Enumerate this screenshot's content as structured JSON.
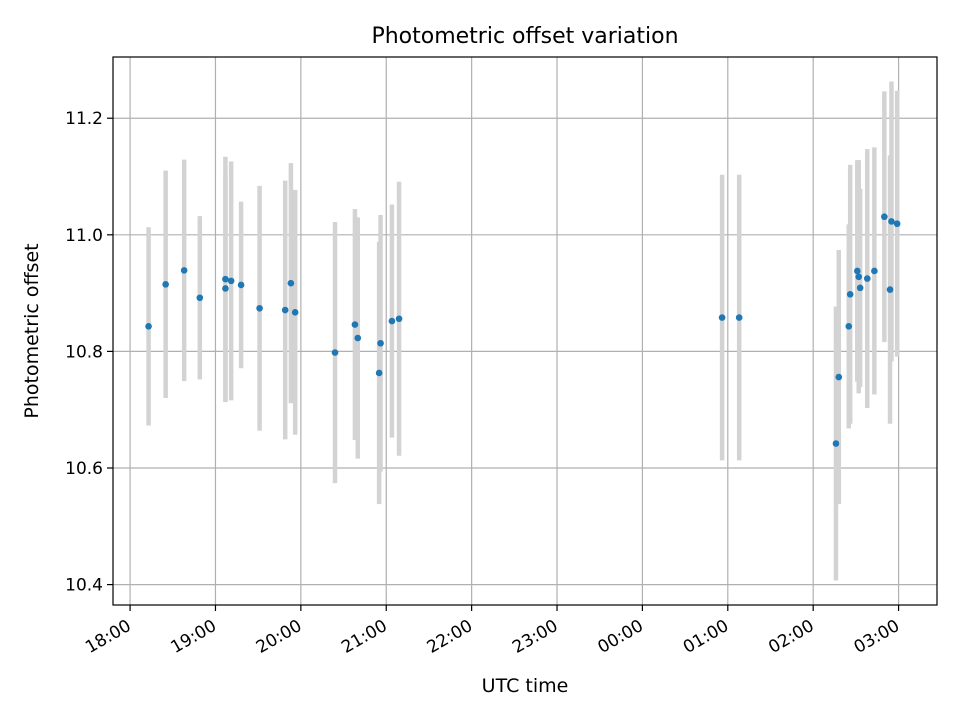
{
  "chart_data": {
    "type": "scatter",
    "title": "Photometric offset variation",
    "xlabel": "UTC time",
    "ylabel": "Photometric offset",
    "grid": true,
    "xlim": [
      "17:48",
      "03:27"
    ],
    "ylim": [
      10.365,
      11.305
    ],
    "x_ticks": [
      "18:00",
      "19:00",
      "20:00",
      "21:00",
      "22:00",
      "23:00",
      "00:00",
      "01:00",
      "02:00",
      "03:00"
    ],
    "y_ticks": [
      "10.4",
      "10.6",
      "10.8",
      "11.0",
      "11.2"
    ],
    "colors": {
      "point": "#1f77b4",
      "errorbar": "#d3d3d3",
      "grid": "#b0b0b0"
    },
    "series": [
      {
        "points": [
          {
            "x": "18:13",
            "y": 10.843,
            "err": 0.17
          },
          {
            "x": "18:25",
            "y": 10.915,
            "err": 0.195
          },
          {
            "x": "18:38",
            "y": 10.939,
            "err": 0.19
          },
          {
            "x": "18:49",
            "y": 10.892,
            "err": 0.14
          },
          {
            "x": "19:07",
            "y": 10.908,
            "err": 0.195
          },
          {
            "x": "19:07",
            "y": 10.924,
            "err": 0.21
          },
          {
            "x": "19:11",
            "y": 10.921,
            "err": 0.205
          },
          {
            "x": "19:18",
            "y": 10.914,
            "err": 0.143
          },
          {
            "x": "19:31",
            "y": 10.874,
            "err": 0.21
          },
          {
            "x": "19:49",
            "y": 10.871,
            "err": 0.222
          },
          {
            "x": "19:53",
            "y": 10.917,
            "err": 0.206
          },
          {
            "x": "19:56",
            "y": 10.867,
            "err": 0.21
          },
          {
            "x": "20:24",
            "y": 10.798,
            "err": 0.224
          },
          {
            "x": "20:38",
            "y": 10.846,
            "err": 0.198
          },
          {
            "x": "20:40",
            "y": 10.823,
            "err": 0.207
          },
          {
            "x": "20:55",
            "y": 10.763,
            "err": 0.225
          },
          {
            "x": "20:56",
            "y": 10.814,
            "err": 0.22
          },
          {
            "x": "21:04",
            "y": 10.852,
            "err": 0.2
          },
          {
            "x": "21:09",
            "y": 10.856,
            "err": 0.235
          },
          {
            "x": "00:56",
            "y": 10.858,
            "err": 0.245
          },
          {
            "x": "01:08",
            "y": 10.858,
            "err": 0.245
          },
          {
            "x": "02:16",
            "y": 10.642,
            "err": 0.235
          },
          {
            "x": "02:18",
            "y": 10.756,
            "err": 0.218
          },
          {
            "x": "02:25",
            "y": 10.843,
            "err": 0.175
          },
          {
            "x": "02:26",
            "y": 10.898,
            "err": 0.222
          },
          {
            "x": "02:31",
            "y": 10.938,
            "err": 0.19
          },
          {
            "x": "02:32",
            "y": 10.928,
            "err": 0.2
          },
          {
            "x": "02:33",
            "y": 10.909,
            "err": 0.17
          },
          {
            "x": "02:38",
            "y": 10.925,
            "err": 0.222
          },
          {
            "x": "02:43",
            "y": 10.938,
            "err": 0.212
          },
          {
            "x": "02:50",
            "y": 11.031,
            "err": 0.215
          },
          {
            "x": "02:54",
            "y": 10.906,
            "err": 0.23
          },
          {
            "x": "02:55",
            "y": 11.023,
            "err": 0.24
          },
          {
            "x": "02:59",
            "y": 11.019,
            "err": 0.228
          }
        ]
      }
    ]
  }
}
